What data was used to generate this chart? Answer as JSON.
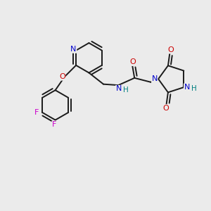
{
  "background_color": "#ebebeb",
  "figsize": [
    3.0,
    3.0
  ],
  "dpi": 100,
  "colors": {
    "C": "#1a1a1a",
    "N": "#0000cc",
    "O": "#cc0000",
    "F": "#cc00cc",
    "H": "#008080",
    "bond": "#1a1a1a"
  },
  "bond_lw": 1.4,
  "font_size": 7.5
}
